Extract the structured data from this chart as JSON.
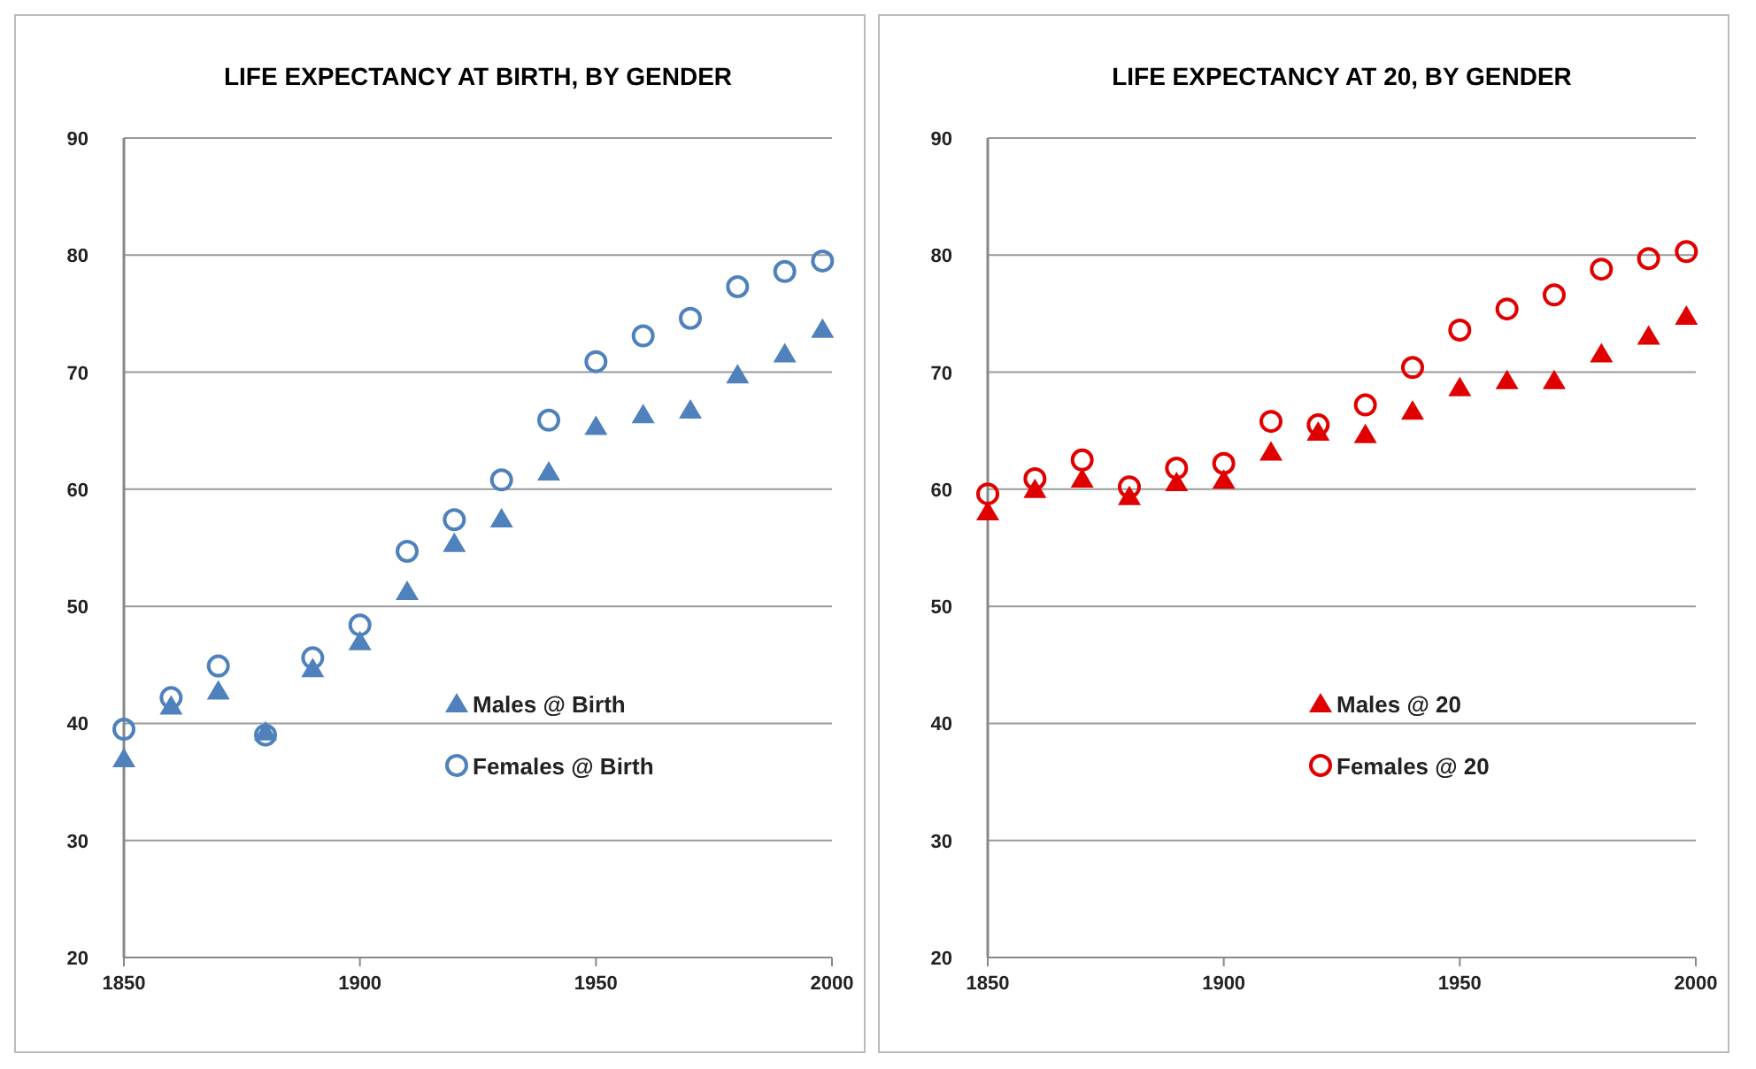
{
  "chart_data": [
    {
      "type": "scatter",
      "title": "LIFE EXPECTANCY AT BIRTH, BY GENDER",
      "x": [
        1850,
        1860,
        1870,
        1880,
        1890,
        1900,
        1910,
        1920,
        1930,
        1940,
        1950,
        1960,
        1970,
        1980,
        1990,
        1998
      ],
      "xlim": [
        1850,
        2000
      ],
      "xticks": [
        1850,
        1900,
        1950,
        2000
      ],
      "ylim": [
        20,
        90
      ],
      "yticks": [
        20,
        30,
        40,
        50,
        60,
        70,
        80,
        90
      ],
      "grid": "y",
      "legend": "right",
      "series": [
        {
          "name": "Males @ Birth",
          "color": "#4f81bd",
          "marker": "triangle",
          "values": [
            37.0,
            41.5,
            42.8,
            39.3,
            44.7,
            47.0,
            51.3,
            55.4,
            57.5,
            61.5,
            65.4,
            66.4,
            66.8,
            69.8,
            71.6,
            73.7
          ]
        },
        {
          "name": "Females @ Birth",
          "color": "#4f81bd",
          "marker": "circle",
          "values": [
            39.5,
            42.2,
            44.9,
            39.0,
            45.6,
            48.4,
            54.7,
            57.4,
            60.8,
            65.9,
            70.9,
            73.1,
            74.6,
            77.3,
            78.6,
            79.5
          ]
        }
      ]
    },
    {
      "type": "scatter",
      "title": "LIFE EXPECTANCY AT 20, BY GENDER",
      "x": [
        1850,
        1860,
        1870,
        1880,
        1890,
        1900,
        1910,
        1920,
        1930,
        1940,
        1950,
        1960,
        1970,
        1980,
        1990,
        1998
      ],
      "xlim": [
        1850,
        2000
      ],
      "xticks": [
        1850,
        1900,
        1950,
        2000
      ],
      "ylim": [
        20,
        90
      ],
      "yticks": [
        20,
        30,
        40,
        50,
        60,
        70,
        80,
        90
      ],
      "grid": "y",
      "legend": "right",
      "series": [
        {
          "name": "Males @ 20",
          "color": "#e00000",
          "marker": "triangle",
          "values": [
            58.1,
            60.0,
            60.9,
            59.4,
            60.6,
            60.8,
            63.2,
            64.9,
            64.7,
            66.7,
            68.7,
            69.3,
            69.3,
            71.6,
            73.1,
            74.8
          ]
        },
        {
          "name": "Females @ 20",
          "color": "#e00000",
          "marker": "circle",
          "values": [
            59.6,
            60.9,
            62.5,
            60.2,
            61.8,
            62.2,
            65.8,
            65.5,
            67.2,
            70.4,
            73.6,
            75.4,
            76.6,
            78.8,
            79.7,
            80.3
          ]
        }
      ]
    }
  ]
}
